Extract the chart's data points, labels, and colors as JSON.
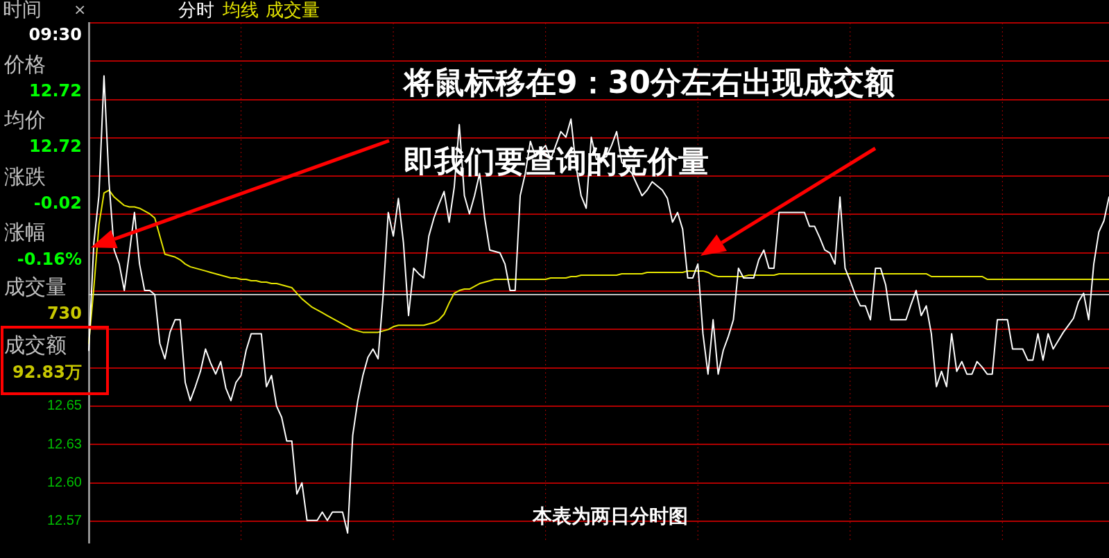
{
  "chart_data": {
    "type": "line",
    "grid": true,
    "tick_labels": "y",
    "categories": [
      null,
      null,
      null,
      null,
      null,
      null,
      null,
      null,
      null,
      null,
      null,
      null,
      null,
      null,
      null,
      null,
      null,
      null,
      null,
      null,
      null,
      null,
      null,
      null,
      null,
      null,
      null,
      null,
      null,
      null,
      null,
      null,
      null,
      null,
      null,
      null,
      null,
      null,
      null,
      null,
      null,
      null,
      null,
      null,
      null,
      null,
      null,
      null,
      null,
      null,
      null,
      null,
      null,
      null,
      null,
      null,
      null,
      null,
      null,
      null,
      null,
      null,
      null,
      null,
      null,
      null,
      null,
      null,
      null,
      null,
      null,
      null,
      null,
      null,
      null,
      null,
      null,
      null,
      null,
      null,
      null,
      null,
      null,
      null,
      null,
      null,
      null,
      null,
      null,
      null,
      null,
      null,
      null,
      null,
      null,
      null,
      null,
      null,
      null,
      null,
      null,
      null,
      null,
      null,
      null,
      null,
      null,
      null,
      null,
      null,
      null,
      null,
      null,
      null,
      null,
      null,
      null,
      null,
      null,
      null,
      null,
      null,
      null,
      null,
      null,
      null,
      null,
      null,
      null,
      null,
      null,
      null,
      null,
      null,
      null,
      null,
      null,
      null,
      null,
      null,
      null,
      null,
      null,
      null,
      null,
      null,
      null,
      null,
      null,
      null,
      null,
      null,
      null,
      null,
      null,
      null,
      null,
      null,
      null,
      null,
      null,
      null,
      null,
      null,
      null,
      null,
      null,
      null,
      null,
      null,
      null,
      null,
      null,
      null,
      null,
      null,
      null,
      null,
      null,
      null,
      null,
      null,
      null,
      null,
      null,
      null,
      null,
      null,
      null,
      null,
      null,
      null,
      null,
      null,
      null,
      null,
      null,
      null,
      null,
      null,
      null,
      null
    ],
    "ylim": [
      12.557,
      12.93
    ],
    "yticks": [
      {
        "value": 12.5725,
        "label": "12.57"
      },
      {
        "value": 12.6,
        "label": "12.60"
      },
      {
        "value": 12.6275,
        "label": "12.63"
      },
      {
        "value": 12.655,
        "label": "12.65"
      },
      {
        "value": 12.6825,
        "label": null
      },
      {
        "value": 12.71,
        "label": null
      },
      {
        "value": 12.7375,
        "label": null
      },
      {
        "value": 12.765,
        "label": null
      },
      {
        "value": 12.7925,
        "label": null
      },
      {
        "value": 12.82,
        "label": null
      },
      {
        "value": 12.8475,
        "label": null
      },
      {
        "value": 12.875,
        "label": null
      },
      {
        "value": 12.9025,
        "label": null
      },
      {
        "value": 12.93,
        "label": null
      }
    ],
    "ref_lines": [
      {
        "axis": "y",
        "value": 12.735,
        "color": "#c0c0c0"
      }
    ],
    "series": [
      {
        "name": "分时",
        "color": "#ffffff",
        "values": [
          12.695,
          12.772,
          12.806,
          12.892,
          12.815,
          12.767,
          12.757,
          12.738,
          12.765,
          12.794,
          12.757,
          12.738,
          12.738,
          12.735,
          12.7,
          12.689,
          12.708,
          12.717,
          12.717,
          12.672,
          12.659,
          12.669,
          12.68,
          12.696,
          12.686,
          12.678,
          12.687,
          12.668,
          12.659,
          12.672,
          12.677,
          12.695,
          12.707,
          12.707,
          12.707,
          12.669,
          12.677,
          12.655,
          12.647,
          12.63,
          12.63,
          12.592,
          12.6,
          12.573,
          12.573,
          12.573,
          12.579,
          12.573,
          12.579,
          12.579,
          12.579,
          12.564,
          12.634,
          12.659,
          12.677,
          12.69,
          12.696,
          12.689,
          12.735,
          12.794,
          12.777,
          12.804,
          12.772,
          12.72,
          12.754,
          12.75,
          12.747,
          12.777,
          12.79,
          12.8,
          12.809,
          12.787,
          12.812,
          12.857,
          12.806,
          12.793,
          12.806,
          12.822,
          12.79,
          12.767,
          12.766,
          12.765,
          12.757,
          12.738,
          12.738,
          12.806,
          12.822,
          12.845,
          12.834,
          12.838,
          12.842,
          12.832,
          12.842,
          12.852,
          12.848,
          12.861,
          12.827,
          12.806,
          12.797,
          12.848,
          12.832,
          12.833,
          12.834,
          12.842,
          12.852,
          12.83,
          12.826,
          12.822,
          12.814,
          12.806,
          12.81,
          12.816,
          12.813,
          12.81,
          12.804,
          12.787,
          12.794,
          12.782,
          12.747,
          12.747,
          12.757,
          12.707,
          12.678,
          12.717,
          12.678,
          12.695,
          12.705,
          12.717,
          12.754,
          12.747,
          12.747,
          12.747,
          12.76,
          12.767,
          12.754,
          12.754,
          12.794,
          12.794,
          12.794,
          12.794,
          12.794,
          12.794,
          12.784,
          12.784,
          12.776,
          12.767,
          12.765,
          12.757,
          12.805,
          12.754,
          12.745,
          12.735,
          12.727,
          12.727,
          12.717,
          12.754,
          12.754,
          12.742,
          12.717,
          12.717,
          12.717,
          12.717,
          12.728,
          12.738,
          12.72,
          12.727,
          12.707,
          12.669,
          12.68,
          12.669,
          12.707,
          12.68,
          12.687,
          12.678,
          12.678,
          12.687,
          12.683,
          12.678,
          12.678,
          12.717,
          12.717,
          12.717,
          12.696,
          12.696,
          12.696,
          12.688,
          12.688,
          12.707,
          12.688,
          12.707,
          12.696,
          12.702,
          12.708,
          12.713,
          12.718,
          12.73,
          12.736,
          12.717,
          12.757,
          12.78,
          12.788,
          12.805
        ]
      },
      {
        "name": "均线",
        "color": "#e6e600",
        "values": [
          12.7,
          12.74,
          12.785,
          12.808,
          12.81,
          12.805,
          12.802,
          12.799,
          12.798,
          12.798,
          12.797,
          12.795,
          12.793,
          12.79,
          12.777,
          12.764,
          12.763,
          12.762,
          12.76,
          12.757,
          12.755,
          12.754,
          12.753,
          12.752,
          12.751,
          12.75,
          12.749,
          12.748,
          12.747,
          12.747,
          12.746,
          12.746,
          12.745,
          12.745,
          12.744,
          12.744,
          12.743,
          12.743,
          12.742,
          12.741,
          12.74,
          12.736,
          12.732,
          12.729,
          12.726,
          12.724,
          12.722,
          12.72,
          12.718,
          12.716,
          12.714,
          12.712,
          12.71,
          12.709,
          12.708,
          12.708,
          12.708,
          12.708,
          12.709,
          12.71,
          12.712,
          12.713,
          12.713,
          12.713,
          12.713,
          12.713,
          12.713,
          12.714,
          12.715,
          12.717,
          12.721,
          12.729,
          12.736,
          12.738,
          12.739,
          12.739,
          12.741,
          12.743,
          12.744,
          12.745,
          12.746,
          12.746,
          12.746,
          12.746,
          12.746,
          12.746,
          12.746,
          12.746,
          12.746,
          12.746,
          12.746,
          12.747,
          12.747,
          12.747,
          12.747,
          12.748,
          12.748,
          12.749,
          12.749,
          12.749,
          12.749,
          12.749,
          12.749,
          12.749,
          12.749,
          12.75,
          12.75,
          12.75,
          12.75,
          12.75,
          12.751,
          12.751,
          12.751,
          12.751,
          12.751,
          12.751,
          12.751,
          12.751,
          12.752,
          12.752,
          12.752,
          12.752,
          12.751,
          12.749,
          12.748,
          12.748,
          12.748,
          12.748,
          12.748,
          12.748,
          12.749,
          12.749,
          12.749,
          12.749,
          12.749,
          12.749,
          12.75,
          12.75,
          12.75,
          12.75,
          12.75,
          12.75,
          12.75,
          12.75,
          12.75,
          12.75,
          12.75,
          12.75,
          12.75,
          12.75,
          12.75,
          12.75,
          12.75,
          12.75,
          12.75,
          12.75,
          12.75,
          12.75,
          12.75,
          12.75,
          12.75,
          12.75,
          12.75,
          12.75,
          12.75,
          12.75,
          12.748,
          12.748,
          12.748,
          12.748,
          12.748,
          12.748,
          12.748,
          12.748,
          12.748,
          12.748,
          12.748,
          12.746,
          12.746,
          12.746,
          12.746,
          12.746,
          12.746,
          12.746,
          12.746,
          12.746,
          12.746,
          12.746,
          12.746,
          12.746,
          12.746,
          12.746,
          12.746,
          12.746,
          12.746,
          12.746,
          12.746,
          12.746,
          12.746,
          12.746,
          12.746,
          12.746
        ]
      }
    ],
    "annotations": [
      "时间",
      "×",
      "成交量",
      "09:30",
      "价格",
      "12.72",
      "均价",
      "12.72",
      "涨跌",
      "-0.02",
      "涨幅",
      "-0.16%",
      "成交量",
      "730",
      "成交额",
      "92.83万",
      "将鼠标移在9：30分左右出现成交额",
      "即我们要查询的竞价量",
      "本表为两日分时图"
    ]
  }
}
